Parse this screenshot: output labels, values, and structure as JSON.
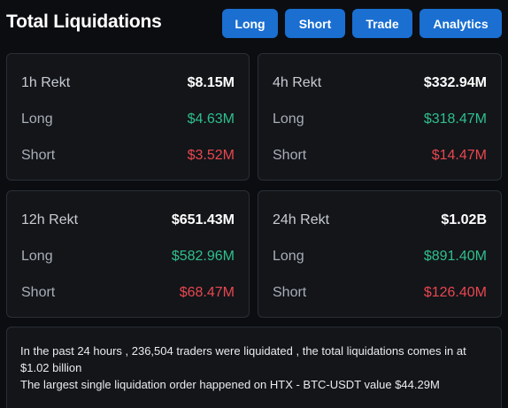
{
  "header": {
    "title": "Total Liquidations",
    "tabs": [
      "Long",
      "Short",
      "Trade",
      "Analytics"
    ]
  },
  "cards": [
    {
      "period": "1h Rekt",
      "total": "$8.15M",
      "long_label": "Long",
      "long": "$4.63M",
      "short_label": "Short",
      "short": "$3.52M"
    },
    {
      "period": "4h Rekt",
      "total": "$332.94M",
      "long_label": "Long",
      "long": "$318.47M",
      "short_label": "Short",
      "short": "$14.47M"
    },
    {
      "period": "12h Rekt",
      "total": "$651.43M",
      "long_label": "Long",
      "long": "$582.96M",
      "short_label": "Short",
      "short": "$68.47M"
    },
    {
      "period": "24h Rekt",
      "total": "$1.02B",
      "long_label": "Long",
      "long": "$891.40M",
      "short_label": "Short",
      "short": "$126.40M"
    }
  ],
  "summary": {
    "line1": "In the past 24 hours , 236,504 traders were liquidated , the total liquidations comes in at $1.02 billion",
    "line2": "The largest single liquidation order happened on HTX - BTC-USDT value $44.29M"
  },
  "colors": {
    "background": "#0b0d11",
    "card": "#131519",
    "accent": "#1a6fd1",
    "long": "#2fbf8c",
    "short": "#e8474f"
  }
}
